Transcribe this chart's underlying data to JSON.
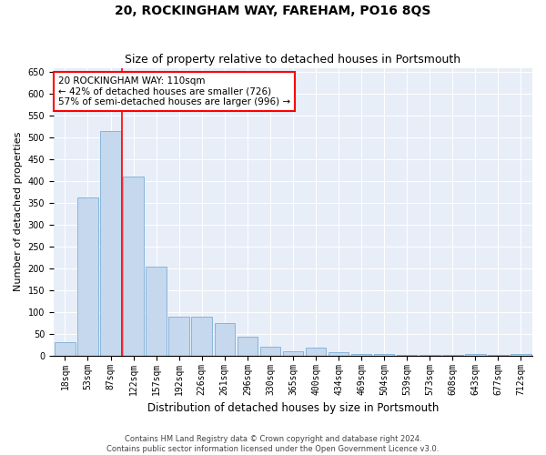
{
  "title": "20, ROCKINGHAM WAY, FAREHAM, PO16 8QS",
  "subtitle": "Size of property relative to detached houses in Portsmouth",
  "xlabel": "Distribution of detached houses by size in Portsmouth",
  "ylabel": "Number of detached properties",
  "categories": [
    "18sqm",
    "53sqm",
    "87sqm",
    "122sqm",
    "157sqm",
    "192sqm",
    "226sqm",
    "261sqm",
    "296sqm",
    "330sqm",
    "365sqm",
    "400sqm",
    "434sqm",
    "469sqm",
    "504sqm",
    "539sqm",
    "573sqm",
    "608sqm",
    "643sqm",
    "677sqm",
    "712sqm"
  ],
  "values": [
    30,
    362,
    516,
    410,
    205,
    90,
    90,
    75,
    43,
    20,
    10,
    18,
    8,
    4,
    4,
    2,
    1,
    1,
    4,
    1,
    4
  ],
  "bar_color": "#c5d8ed",
  "bar_edge_color": "#7aaed6",
  "annotation_text": "20 ROCKINGHAM WAY: 110sqm\n← 42% of detached houses are smaller (726)\n57% of semi-detached houses are larger (996) →",
  "annotation_box_color": "white",
  "annotation_box_edge_color": "red",
  "vline_color": "red",
  "ylim": [
    0,
    660
  ],
  "yticks": [
    0,
    50,
    100,
    150,
    200,
    250,
    300,
    350,
    400,
    450,
    500,
    550,
    600,
    650
  ],
  "bg_color": "#e8eef8",
  "footer_line1": "Contains HM Land Registry data © Crown copyright and database right 2024.",
  "footer_line2": "Contains public sector information licensed under the Open Government Licence v3.0.",
  "title_fontsize": 10,
  "subtitle_fontsize": 9,
  "xlabel_fontsize": 8.5,
  "ylabel_fontsize": 8,
  "tick_fontsize": 7,
  "annotation_fontsize": 7.5,
  "footer_fontsize": 6
}
